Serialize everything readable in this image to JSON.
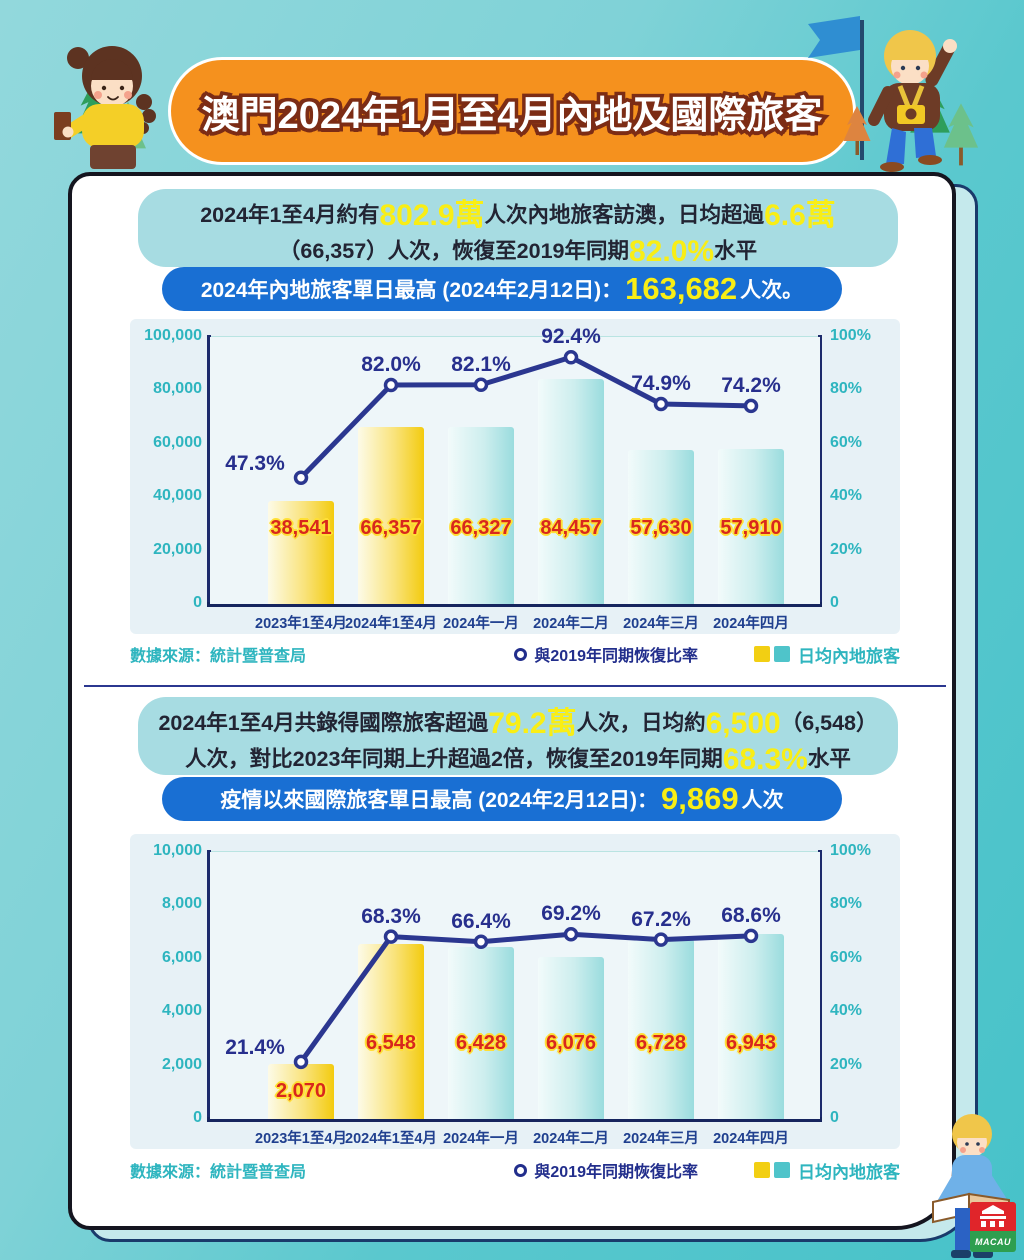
{
  "title": "澳門2024年1月至4月內地及國際旅客",
  "sections": [
    {
      "info_segments": [
        {
          "text": "2024年1至4月約有",
          "style": "dark"
        },
        {
          "text": "802.9萬",
          "style": "yellow"
        },
        {
          "text": "人次內地旅客訪澳，日均超過",
          "style": "dark"
        },
        {
          "text": "6.6萬",
          "style": "yellow"
        },
        {
          "break": true
        },
        {
          "text": "（66,357）人次，恢復至2019年同期",
          "style": "dark"
        },
        {
          "text": "82.0%",
          "style": "yellow"
        },
        {
          "text": "水平",
          "style": "dark"
        }
      ],
      "pill_segments": [
        {
          "text": "2024年內地旅客單日最高 (2024年2月12日)：",
          "style": "white"
        },
        {
          "text": "163,682",
          "style": "yellow-big"
        },
        {
          "text": "人次。",
          "style": "white"
        }
      ],
      "footer": {
        "source": "數據來源：統計暨普查局",
        "line_legend": "與2019年同期恢復比率",
        "bar_legend": "日均內地旅客"
      }
    },
    {
      "info_segments": [
        {
          "text": "2024年1至4月共錄得國際旅客超過",
          "style": "dark"
        },
        {
          "text": "79.2萬",
          "style": "yellow"
        },
        {
          "text": "人次，日均約",
          "style": "dark"
        },
        {
          "text": "6,500",
          "style": "yellow"
        },
        {
          "text": "（6,548）",
          "style": "dark"
        },
        {
          "break": true
        },
        {
          "text": "人次，對比2023年同期上升超過2倍，恢復至2019年同期",
          "style": "dark"
        },
        {
          "text": "68.3%",
          "style": "yellow"
        },
        {
          "text": "水平",
          "style": "dark"
        }
      ],
      "pill_segments": [
        {
          "text": "疫情以來國際旅客單日最高 (2024年2月12日)：",
          "style": "white"
        },
        {
          "text": "9,869",
          "style": "yellow-big"
        },
        {
          "text": "人次",
          "style": "white"
        }
      ],
      "footer": {
        "source": "數據來源：統計暨普查局",
        "line_legend": "與2019年同期恢復比率",
        "bar_legend": "日均內地旅客"
      }
    }
  ],
  "chart_data": [
    {
      "type": "bar+line",
      "categories": [
        "2023年1至4月",
        "2024年1至4月",
        "2024年一月",
        "2024年二月",
        "2024年三月",
        "2024年四月"
      ],
      "series": [
        {
          "name": "日均內地旅客",
          "type": "bar",
          "values": [
            38541,
            66357,
            66327,
            84457,
            57630,
            57910
          ],
          "labels": [
            "38,541",
            "66,357",
            "66,327",
            "84,457",
            "57,630",
            "57,910"
          ]
        },
        {
          "name": "與2019年同期恢復比率",
          "type": "line",
          "values": [
            47.3,
            82.0,
            82.1,
            92.4,
            74.9,
            74.2
          ],
          "labels": [
            "47.3%",
            "82.0%",
            "82.1%",
            "92.4%",
            "74.9%",
            "74.2%"
          ]
        }
      ],
      "y_left": {
        "max": 100000,
        "ticks": [
          "100,000",
          "80,000",
          "60,000",
          "40,000",
          "20,000",
          "0"
        ]
      },
      "y_right": {
        "max": 100,
        "ticks": [
          "100%",
          "80%",
          "60%",
          "40%",
          "20%",
          "0"
        ]
      },
      "highlight_bars": [
        0,
        1
      ],
      "grid": true,
      "legend_position": "bottom"
    },
    {
      "type": "bar+line",
      "categories": [
        "2023年1至4月",
        "2024年1至4月",
        "2024年一月",
        "2024年二月",
        "2024年三月",
        "2024年四月"
      ],
      "series": [
        {
          "name": "日均內地旅客",
          "type": "bar",
          "values": [
            2070,
            6548,
            6428,
            6076,
            6728,
            6943
          ],
          "labels": [
            "2,070",
            "6,548",
            "6,428",
            "6,076",
            "6,728",
            "6,943"
          ]
        },
        {
          "name": "與2019年同期恢復比率",
          "type": "line",
          "values": [
            21.4,
            68.3,
            66.4,
            69.2,
            67.2,
            68.6
          ],
          "labels": [
            "21.4%",
            "68.3%",
            "66.4%",
            "69.2%",
            "67.2%",
            "68.6%"
          ]
        }
      ],
      "y_left": {
        "max": 10000,
        "ticks": [
          "10,000",
          "8,000",
          "6,000",
          "4,000",
          "2,000",
          "0"
        ]
      },
      "y_right": {
        "max": 100,
        "ticks": [
          "100%",
          "80%",
          "60%",
          "40%",
          "20%",
          "0"
        ]
      },
      "highlight_bars": [
        0,
        1
      ],
      "grid": true,
      "legend_position": "bottom"
    }
  ],
  "colors": {
    "banner_orange": "#f5911e",
    "info_teal": "#a7dce2",
    "pill_blue": "#196fd3",
    "highlight_yellow": "#f9ee15",
    "bar_teal": "#9adcde",
    "bar_yellow": "#f3cb0f",
    "line_navy": "#2b3790",
    "value_red": "#d8271d",
    "axis_teal_text": "#2eb5bf"
  },
  "logo": {
    "text": "MACAU"
  }
}
